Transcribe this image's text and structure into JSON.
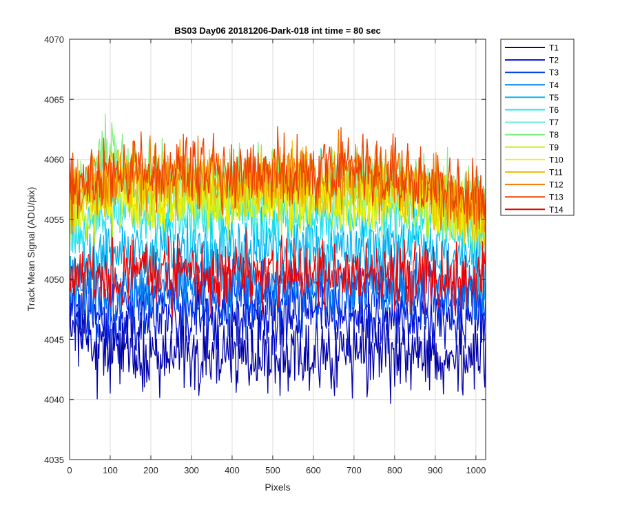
{
  "chart_data": {
    "type": "line",
    "title": "BS03 Day06 20181206-Dark-018 int time = 80 sec",
    "xlabel": "Pixels",
    "ylabel": "Track Mean Signal (ADU/pix)",
    "xlim": [
      0,
      1024
    ],
    "ylim": [
      4035,
      4070
    ],
    "xticks": [
      0,
      100,
      200,
      300,
      400,
      500,
      600,
      700,
      800,
      900,
      1000
    ],
    "yticks": [
      4035,
      4040,
      4045,
      4050,
      4055,
      4060,
      4065,
      4070
    ],
    "grid": true,
    "legend_position": "outside-right",
    "x": [
      0,
      30,
      60,
      100,
      150,
      200,
      250,
      300,
      350,
      400,
      450,
      500,
      550,
      600,
      650,
      700,
      750,
      800,
      850,
      900,
      950,
      1000,
      1024
    ],
    "series": [
      {
        "name": "T1",
        "color": "#0000A8",
        "values": [
          4046.5,
          4045.0,
          4044.5,
          4044.0,
          4044.0,
          4043.5,
          4043.5,
          4043.8,
          4043.6,
          4043.8,
          4043.5,
          4043.8,
          4043.5,
          4043.5,
          4043.5,
          4044.0,
          4043.8,
          4043.8,
          4044.0,
          4043.8,
          4043.5,
          4044.0,
          4044.2
        ]
      },
      {
        "name": "T2",
        "color": "#0010D0",
        "values": [
          4047.5,
          4046.5,
          4046.5,
          4046.0,
          4046.5,
          4047.0,
          4047.0,
          4047.0,
          4047.0,
          4047.2,
          4047.0,
          4047.0,
          4047.0,
          4047.0,
          4047.0,
          4047.0,
          4047.0,
          4047.0,
          4047.0,
          4047.0,
          4047.0,
          4047.0,
          4046.5
        ]
      },
      {
        "name": "T3",
        "color": "#0040F0",
        "values": [
          4048.5,
          4047.5,
          4047.5,
          4047.5,
          4048.0,
          4048.5,
          4048.5,
          4048.5,
          4048.5,
          4048.8,
          4048.5,
          4048.5,
          4048.5,
          4048.8,
          4048.5,
          4048.5,
          4048.5,
          4048.5,
          4048.8,
          4048.5,
          4048.5,
          4048.5,
          4048.0
        ]
      },
      {
        "name": "T4",
        "color": "#0080F0",
        "values": [
          4049.5,
          4049.0,
          4049.0,
          4049.0,
          4049.5,
          4049.8,
          4050.0,
          4050.0,
          4050.0,
          4050.0,
          4050.0,
          4050.0,
          4050.0,
          4050.0,
          4050.0,
          4050.0,
          4050.0,
          4050.0,
          4050.0,
          4050.0,
          4049.8,
          4049.5,
          4049.0
        ]
      },
      {
        "name": "T5",
        "color": "#00B0F0",
        "values": [
          4051.0,
          4051.0,
          4051.5,
          4052.0,
          4052.5,
          4052.5,
          4052.5,
          4052.5,
          4052.5,
          4052.5,
          4052.5,
          4052.5,
          4052.5,
          4052.5,
          4052.5,
          4052.5,
          4052.5,
          4052.5,
          4052.5,
          4052.5,
          4052.0,
          4051.5,
          4051.0
        ]
      },
      {
        "name": "T6",
        "color": "#20E0F0",
        "values": [
          4053.0,
          4054.0,
          4055.0,
          4056.0,
          4055.5,
          4055.0,
          4055.0,
          4055.0,
          4055.0,
          4055.2,
          4055.0,
          4055.0,
          4055.0,
          4055.0,
          4055.0,
          4055.0,
          4055.0,
          4055.0,
          4055.0,
          4055.0,
          4054.5,
          4054.0,
          4053.5
        ]
      },
      {
        "name": "T7",
        "color": "#60F0D0",
        "values": [
          4055.0,
          4056.5,
          4058.0,
          4059.5,
          4057.5,
          4057.0,
          4057.0,
          4057.0,
          4057.0,
          4057.0,
          4057.0,
          4057.0,
          4057.0,
          4057.0,
          4057.0,
          4057.0,
          4057.0,
          4057.0,
          4057.0,
          4056.5,
          4056.0,
          4055.5,
          4055.0
        ]
      },
      {
        "name": "T8",
        "color": "#80F080",
        "values": [
          4056.5,
          4058.0,
          4059.5,
          4061.5,
          4058.5,
          4058.0,
          4058.0,
          4058.0,
          4058.0,
          4058.0,
          4058.0,
          4058.0,
          4058.0,
          4058.0,
          4058.0,
          4058.0,
          4058.0,
          4058.0,
          4058.0,
          4057.5,
          4057.0,
          4056.5,
          4056.0
        ]
      },
      {
        "name": "T9",
        "color": "#C8F020",
        "values": [
          4055.5,
          4055.5,
          4056.0,
          4056.5,
          4056.5,
          4056.5,
          4056.5,
          4056.5,
          4056.5,
          4056.5,
          4056.5,
          4056.5,
          4056.5,
          4056.5,
          4056.5,
          4056.5,
          4056.5,
          4056.5,
          4056.0,
          4055.5,
          4055.0,
          4054.5,
          4054.0
        ]
      },
      {
        "name": "T10",
        "color": "#F0F000",
        "values": [
          4056.0,
          4056.0,
          4056.5,
          4057.0,
          4057.0,
          4057.0,
          4057.0,
          4057.0,
          4057.0,
          4057.0,
          4057.0,
          4057.0,
          4057.0,
          4057.0,
          4057.0,
          4057.0,
          4057.0,
          4057.0,
          4056.5,
          4056.0,
          4055.5,
          4055.0,
          4054.5
        ]
      },
      {
        "name": "T11",
        "color": "#F0C000",
        "values": [
          4056.5,
          4057.0,
          4057.5,
          4058.0,
          4058.0,
          4058.0,
          4058.0,
          4058.0,
          4058.0,
          4058.0,
          4058.0,
          4058.0,
          4058.0,
          4058.0,
          4058.0,
          4058.5,
          4058.0,
          4058.0,
          4057.5,
          4057.0,
          4056.5,
          4056.0,
          4055.5
        ]
      },
      {
        "name": "T12",
        "color": "#F08000",
        "values": [
          4057.0,
          4057.5,
          4058.0,
          4058.5,
          4058.5,
          4058.5,
          4058.5,
          4058.5,
          4058.5,
          4058.5,
          4058.5,
          4058.5,
          4058.5,
          4058.5,
          4058.5,
          4059.0,
          4058.5,
          4058.5,
          4058.0,
          4057.5,
          4057.0,
          4056.5,
          4056.0
        ]
      },
      {
        "name": "T13",
        "color": "#F04000",
        "values": [
          4057.5,
          4058.0,
          4058.5,
          4059.0,
          4059.0,
          4059.0,
          4059.0,
          4059.0,
          4059.0,
          4059.0,
          4059.0,
          4059.0,
          4059.0,
          4059.0,
          4059.5,
          4059.5,
          4059.0,
          4059.0,
          4058.5,
          4058.0,
          4057.5,
          4057.0,
          4056.5
        ]
      },
      {
        "name": "T14",
        "color": "#F00000",
        "values": [
          4050.0,
          4050.0,
          4050.0,
          4050.5,
          4050.5,
          4050.5,
          4050.5,
          4050.5,
          4050.5,
          4050.5,
          4050.5,
          4050.5,
          4050.5,
          4050.5,
          4050.5,
          4050.5,
          4050.5,
          4050.5,
          4050.5,
          4050.0,
          4050.0,
          4050.0,
          4050.0
        ]
      }
    ],
    "noise_amplitude": [
      2.6,
      2.0,
      2.0,
      2.2,
      2.2,
      2.0,
      2.2,
      2.2,
      2.0,
      2.2,
      2.2,
      2.2,
      2.2,
      2.2
    ],
    "extrema": {
      "max": 4065.5,
      "min": 4039.0
    }
  }
}
